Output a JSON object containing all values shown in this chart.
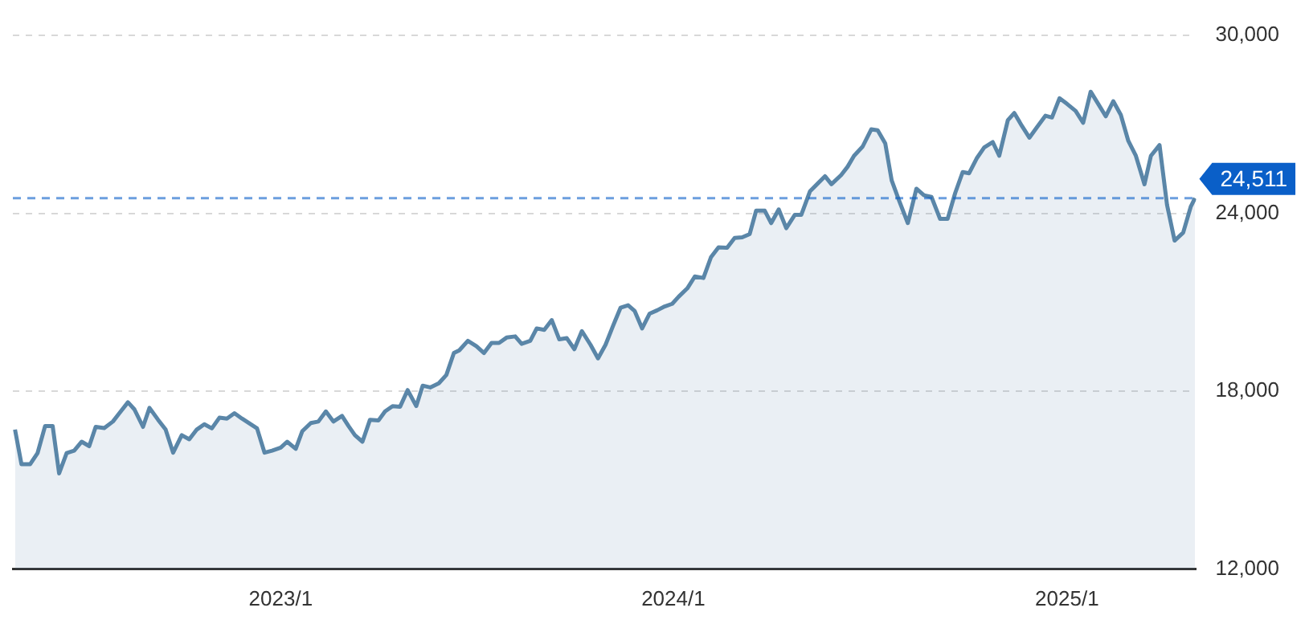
{
  "chart_data": {
    "type": "area",
    "x": [
      "2022-04-29",
      "2022-05-05",
      "2022-05-13",
      "2022-05-20",
      "2022-05-27",
      "2022-06-03",
      "2022-06-09",
      "2022-06-16",
      "2022-06-23",
      "2022-06-30",
      "2022-07-07",
      "2022-07-13",
      "2022-07-21",
      "2022-07-29",
      "2022-08-04",
      "2022-08-12",
      "2022-08-18",
      "2022-08-26",
      "2022-09-01",
      "2022-09-09",
      "2022-09-16",
      "2022-09-23",
      "2022-10-01",
      "2022-10-08",
      "2022-10-15",
      "2022-10-22",
      "2022-10-29",
      "2022-11-05",
      "2022-11-12",
      "2022-11-19",
      "2022-11-26",
      "2022-12-04",
      "2022-12-10",
      "2022-12-17",
      "2022-12-24",
      "2023-01-01",
      "2023-01-07",
      "2023-01-15",
      "2023-01-21",
      "2023-01-29",
      "2023-02-05",
      "2023-02-12",
      "2023-02-19",
      "2023-02-27",
      "2023-03-05",
      "2023-03-11",
      "2023-03-18",
      "2023-03-25",
      "2023-04-02",
      "2023-04-08",
      "2023-04-15",
      "2023-04-22",
      "2023-04-29",
      "2023-05-07",
      "2023-05-13",
      "2023-05-20",
      "2023-05-28",
      "2023-06-04",
      "2023-06-11",
      "2023-06-16",
      "2023-06-24",
      "2023-07-02",
      "2023-07-09",
      "2023-07-16",
      "2023-07-23",
      "2023-07-30",
      "2023-08-07",
      "2023-08-13",
      "2023-08-21",
      "2023-08-27",
      "2023-09-03",
      "2023-09-10",
      "2023-09-17",
      "2023-09-24",
      "2023-10-01",
      "2023-10-08",
      "2023-10-16",
      "2023-10-23",
      "2023-10-30",
      "2023-11-06",
      "2023-11-13",
      "2023-11-20",
      "2023-11-26",
      "2023-12-03",
      "2023-12-10",
      "2023-12-17",
      "2023-12-24",
      "2023-12-31",
      "2024-01-06",
      "2024-01-14",
      "2024-01-21",
      "2024-01-29",
      "2024-02-05",
      "2024-02-12",
      "2024-02-20",
      "2024-02-27",
      "2024-03-05",
      "2024-03-12",
      "2024-03-18",
      "2024-03-26",
      "2024-04-01",
      "2024-04-08",
      "2024-04-15",
      "2024-04-23",
      "2024-04-29",
      "2024-05-07",
      "2024-05-21",
      "2024-05-27",
      "2024-06-05",
      "2024-06-11",
      "2024-06-17",
      "2024-06-25",
      "2024-07-03",
      "2024-07-09",
      "2024-07-16",
      "2024-07-22",
      "2024-07-29",
      "2024-08-06",
      "2024-08-14",
      "2024-08-21",
      "2024-08-28",
      "2024-09-05",
      "2024-09-12",
      "2024-09-19",
      "2024-09-26",
      "2024-10-02",
      "2024-10-09",
      "2024-10-16",
      "2024-10-24",
      "2024-10-30",
      "2024-11-07",
      "2024-11-13",
      "2024-11-20",
      "2024-11-27",
      "2024-12-04",
      "2024-12-12",
      "2024-12-18",
      "2024-12-25",
      "2025-01-01",
      "2025-01-09",
      "2025-01-16",
      "2025-01-23",
      "2025-01-30",
      "2025-02-06",
      "2025-02-13",
      "2025-02-20",
      "2025-02-27",
      "2025-03-06",
      "2025-03-14",
      "2025-03-20",
      "2025-03-28",
      "2025-04-04",
      "2025-04-11",
      "2025-04-19",
      "2025-04-26",
      "2025-04-30"
    ],
    "series": [
      {
        "color": "#5a86a8",
        "values": [
          16710,
          15540,
          15540,
          15920,
          16830,
          16830,
          15230,
          15920,
          16000,
          16300,
          16150,
          16800,
          16760,
          16980,
          17260,
          17630,
          17390,
          16800,
          17440,
          17040,
          16710,
          15930,
          16520,
          16380,
          16710,
          16890,
          16750,
          17110,
          17080,
          17260,
          17080,
          16890,
          16750,
          15930,
          16000,
          16100,
          16300,
          16060,
          16650,
          16930,
          16980,
          17320,
          16980,
          17170,
          16830,
          16520,
          16300,
          17040,
          17020,
          17320,
          17500,
          17480,
          18040,
          17500,
          18190,
          18130,
          18270,
          18550,
          19290,
          19380,
          19700,
          19520,
          19290,
          19630,
          19630,
          19810,
          19850,
          19600,
          19700,
          20120,
          20070,
          20400,
          19750,
          19790,
          19420,
          20030,
          19570,
          19110,
          19570,
          20210,
          20820,
          20900,
          20710,
          20120,
          20620,
          20730,
          20860,
          20950,
          21190,
          21470,
          21870,
          21820,
          22520,
          22850,
          22840,
          23170,
          23190,
          23300,
          24090,
          24090,
          23670,
          24130,
          23500,
          23950,
          23950,
          24740,
          25250,
          24980,
          25290,
          25570,
          25940,
          26250,
          26830,
          26800,
          26360,
          25110,
          24420,
          23670,
          24830,
          24610,
          24550,
          23810,
          23810,
          24680,
          25390,
          25350,
          25850,
          26220,
          26400,
          25940,
          27140,
          27380,
          26950,
          26550,
          26900,
          27290,
          27230,
          27880,
          27690,
          27450,
          27050,
          28100,
          27690,
          27270,
          27780,
          27320,
          26440,
          25940,
          24980,
          25940,
          26300,
          24280,
          23080,
          23350,
          24220,
          24511
        ]
      }
    ],
    "xlim": [
      "2022-04-27",
      "2025-05-01"
    ],
    "xticks": [
      {
        "value": "2023-01-01",
        "label": "2023/1"
      },
      {
        "value": "2024-01-01",
        "label": "2024/1"
      },
      {
        "value": "2025-01-01",
        "label": "2025/1"
      }
    ],
    "ylim": [
      12000,
      30000
    ],
    "yticks": [
      {
        "value": 12000,
        "label": "12,000"
      },
      {
        "value": 18000,
        "label": "18,000"
      },
      {
        "value": 24000,
        "label": "24,000"
      },
      {
        "value": 30000,
        "label": "30,000"
      }
    ],
    "grid": "y",
    "legend": false,
    "marker": "none",
    "line_style": "solid",
    "ref_lines": [
      {
        "axis": "y",
        "value": 24511,
        "label": "24,511",
        "color": "#0a5fc8",
        "line_style": "dashed"
      }
    ]
  }
}
